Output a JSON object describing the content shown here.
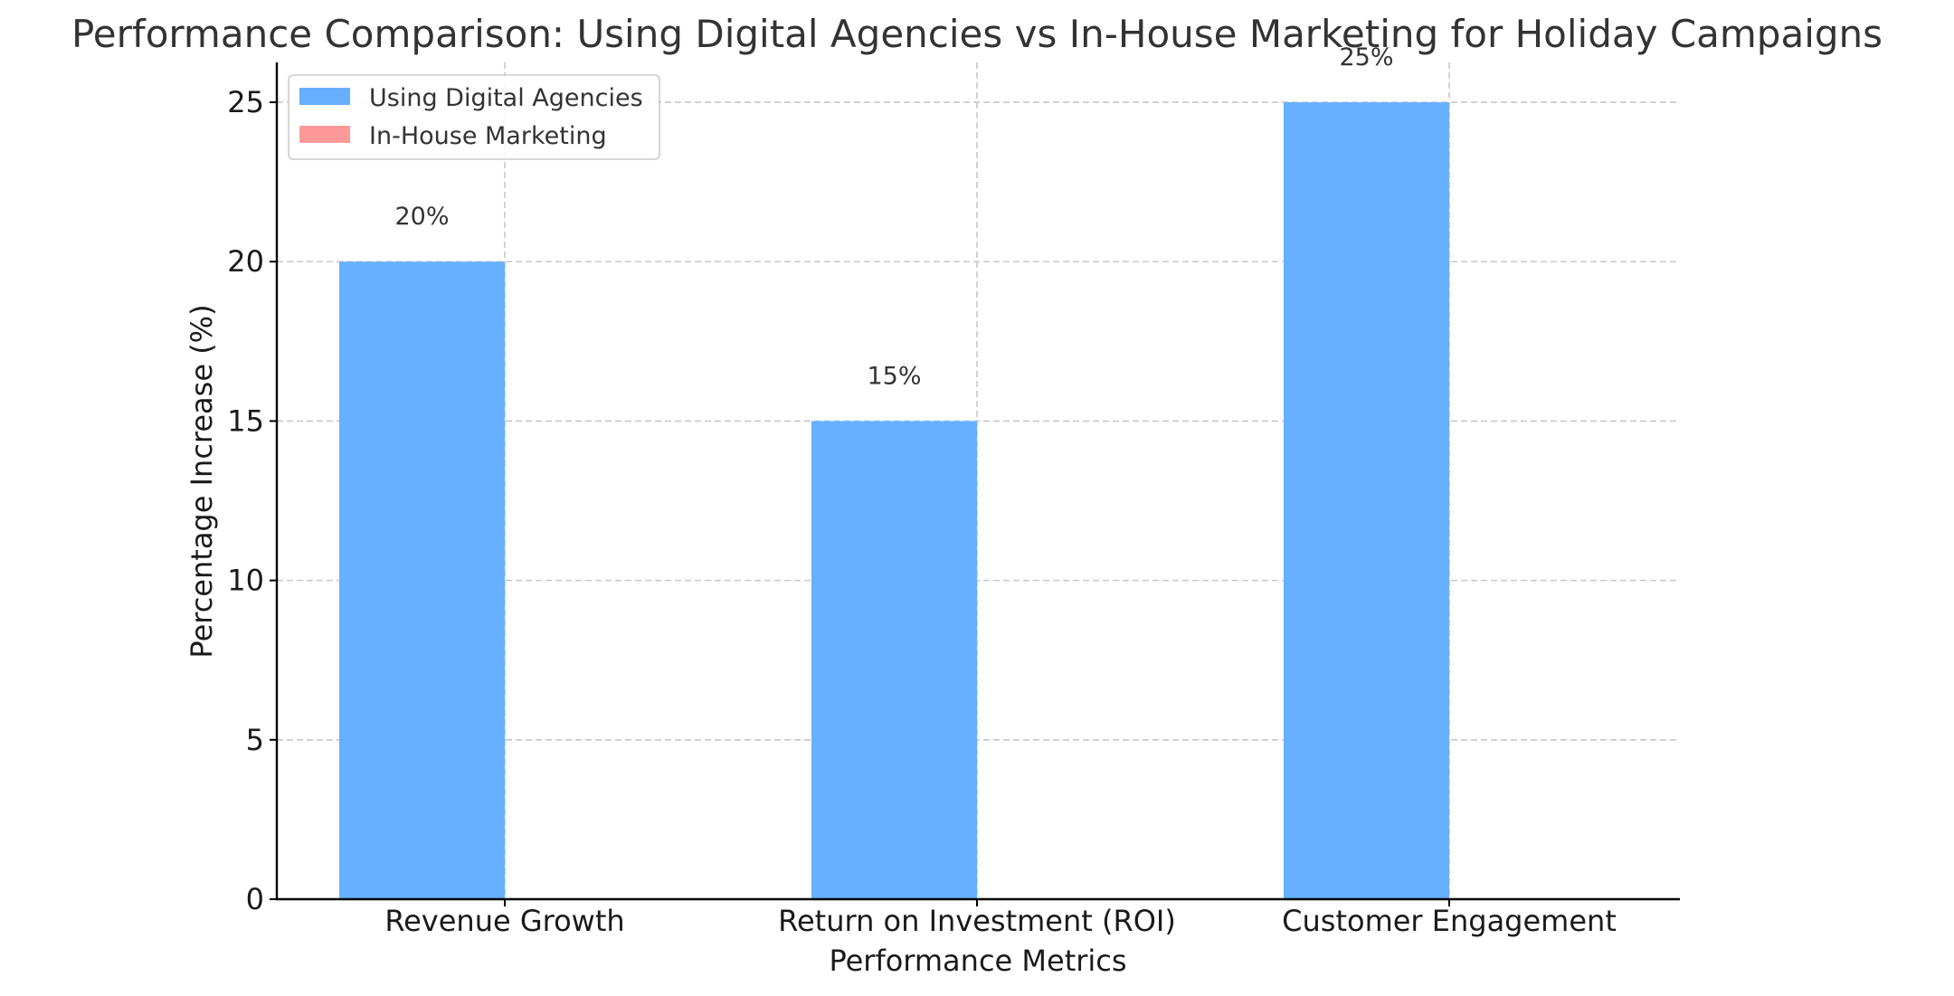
{
  "chart_data": {
    "type": "bar",
    "title": "Performance Comparison: Using Digital Agencies vs In-House Marketing for Holiday Campaigns",
    "xlabel": "Performance Metrics",
    "ylabel": "Percentage Increase (%)",
    "categories": [
      "Revenue Growth",
      "Return on Investment (ROI)",
      "Customer Engagement"
    ],
    "ylim": [
      0,
      26.25
    ],
    "yticks": [
      0,
      5,
      10,
      15,
      20,
      25
    ],
    "grid": true,
    "legend_position": "top-left",
    "series": [
      {
        "name": "Using Digital Agencies",
        "color": "#66b0ff",
        "values": [
          20,
          15,
          25
        ],
        "data_labels": [
          "20%",
          "15%",
          "25%"
        ]
      },
      {
        "name": "In-House Marketing",
        "color": "#ff9999",
        "values": [
          0,
          0,
          0
        ],
        "data_labels": []
      }
    ]
  }
}
